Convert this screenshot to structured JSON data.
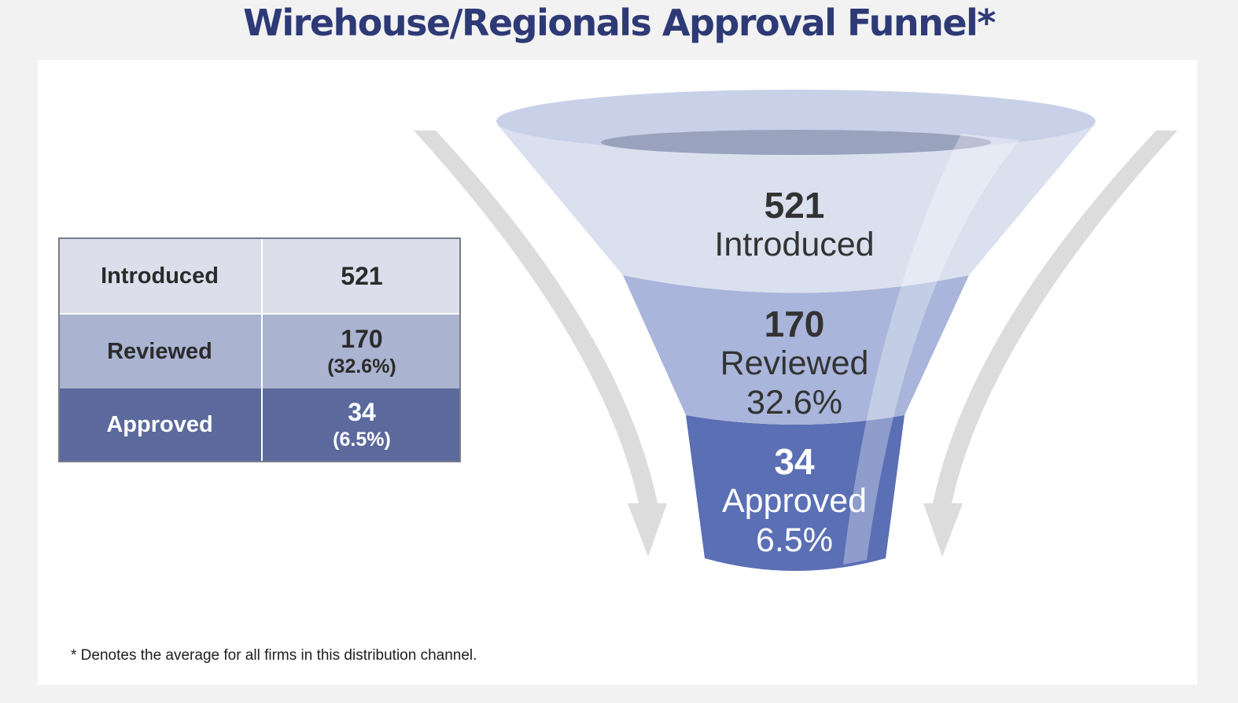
{
  "title": "Wirehouse/Regionals Approval Funnel*",
  "footnote": "* Denotes the average for all firms in this distribution channel.",
  "table": {
    "rows": [
      {
        "label": "Introduced",
        "value": "521",
        "pct": ""
      },
      {
        "label": "Reviewed",
        "value": "170",
        "pct": "(32.6%)"
      },
      {
        "label": "Approved",
        "value": "34",
        "pct": "(6.5%)"
      }
    ]
  },
  "funnel": {
    "stages": [
      {
        "value": "521",
        "label": "Introduced",
        "pct": ""
      },
      {
        "value": "170",
        "label": "Reviewed",
        "pct": "32.6%"
      },
      {
        "value": "34",
        "label": "Approved",
        "pct": "6.5%"
      }
    ]
  },
  "colors": {
    "title": "#2e3a76",
    "stage_introduced": "#dbe0ef",
    "stage_reviewed": "#a9b5da",
    "stage_approved": "#5b6fb5",
    "arrow": "#dcdcdc"
  },
  "chart_data": {
    "type": "funnel",
    "categories": [
      "Introduced",
      "Reviewed",
      "Approved"
    ],
    "values": [
      521,
      170,
      34
    ],
    "percentages": [
      null,
      32.6,
      6.5
    ],
    "title": "Wirehouse/Regionals Approval Funnel*"
  }
}
